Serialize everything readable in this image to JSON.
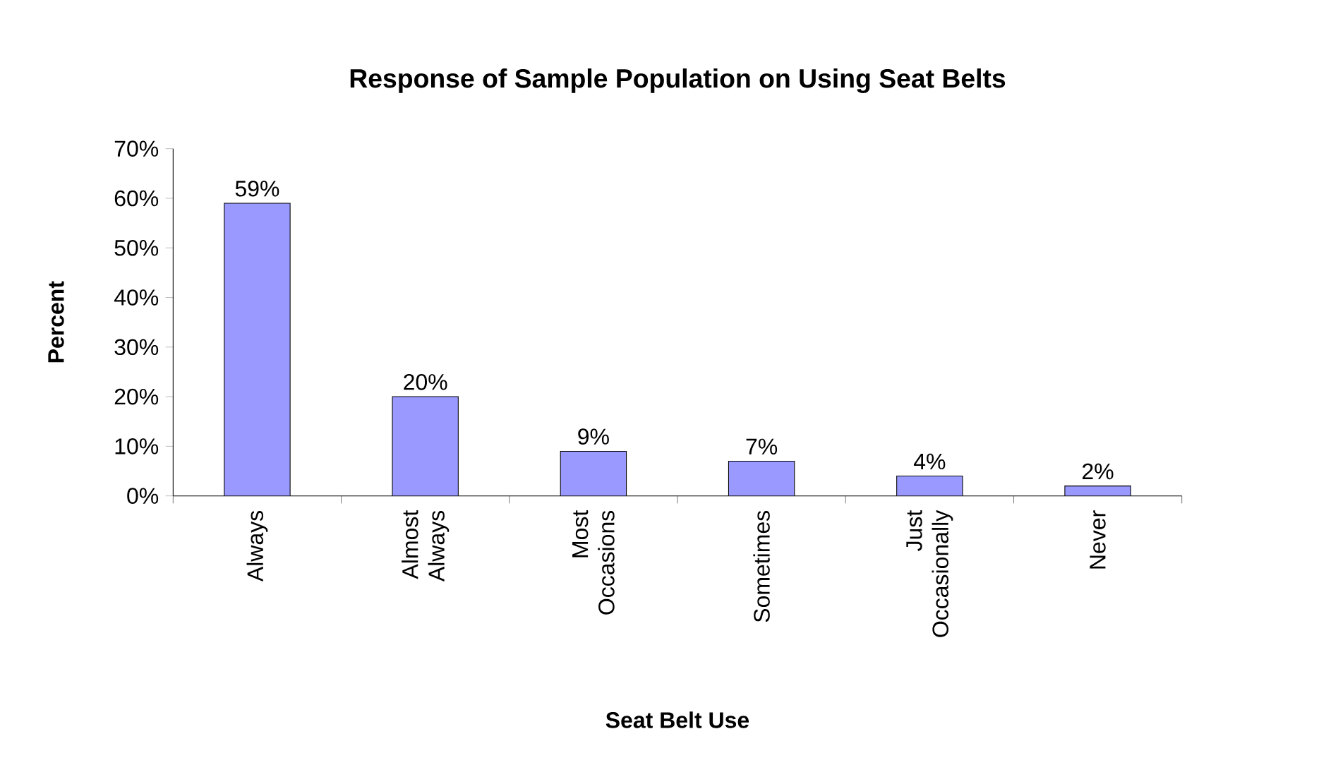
{
  "chart_data": {
    "type": "bar",
    "title": "Response of Sample Population on Using Seat Belts",
    "xlabel": "Seat Belt Use",
    "ylabel": "Percent",
    "categories": [
      "Always",
      "Almost Always",
      "Most Occasions",
      "Sometimes",
      "Just Occasionally",
      "Never"
    ],
    "values": [
      59,
      20,
      9,
      7,
      4,
      2
    ],
    "value_labels": [
      "59%",
      "20%",
      "9%",
      "7%",
      "4%",
      "2%"
    ],
    "color": "#9999ff",
    "ylim": [
      0,
      70
    ],
    "yticks": [
      {
        "value": 0,
        "label": "0%"
      },
      {
        "value": 10,
        "label": "10%"
      },
      {
        "value": 20,
        "label": "20%"
      },
      {
        "value": 30,
        "label": "30%"
      },
      {
        "value": 40,
        "label": "40%"
      },
      {
        "value": 50,
        "label": "50%"
      },
      {
        "value": 60,
        "label": "60%"
      },
      {
        "value": 70,
        "label": "70%"
      }
    ],
    "grid": false
  }
}
